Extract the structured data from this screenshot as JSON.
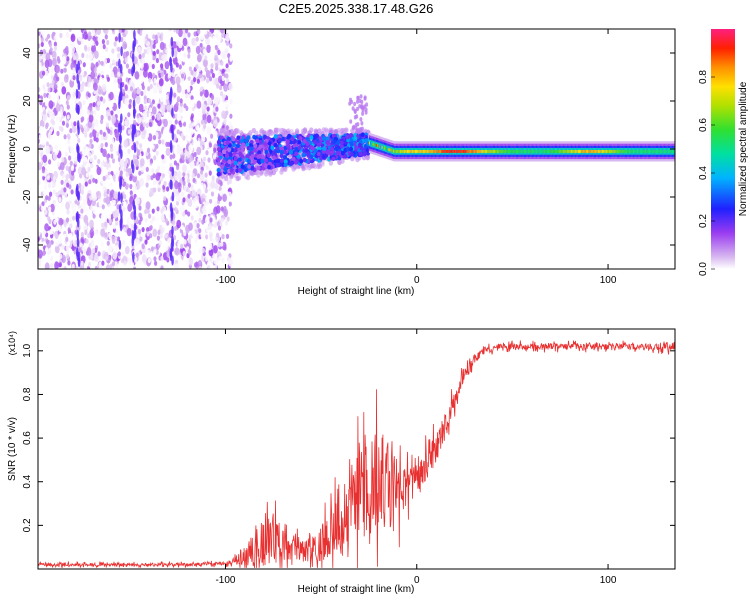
{
  "title": "C2E5.2025.338.17.48.G26",
  "chart_data": [
    {
      "type": "heatmap",
      "xlabel": "Height of straight line (km)",
      "ylabel": "Frequency (Hz)",
      "xlim": [
        -198,
        135
      ],
      "ylim": [
        -50,
        50
      ],
      "xticks": [
        -100,
        0,
        100
      ],
      "xtick_labels": [
        "-100",
        "0",
        "100"
      ],
      "yticks": [
        -40,
        -20,
        0,
        20,
        40
      ],
      "ytick_labels": [
        "-40",
        "-20",
        "0",
        "20",
        "40"
      ],
      "colorbar": {
        "label": "Normalized spectral amplitude",
        "range": [
          0,
          1
        ],
        "ticks": [
          0.0,
          0.2,
          0.4,
          0.6,
          0.8
        ],
        "tick_labels": [
          "0.0",
          "0.2",
          "0.4",
          "0.6",
          "0.8"
        ]
      },
      "regions": [
        {
          "name": "noise",
          "x": [
            -198,
            -97
          ],
          "freq": [
            -50,
            50
          ],
          "amplitude": [
            0.0,
            0.15
          ]
        },
        {
          "name": "turbulent",
          "x": [
            -104,
            -25
          ],
          "freq": [
            -14,
            8
          ],
          "amplitude": [
            0.1,
            0.35
          ]
        },
        {
          "name": "drift",
          "x": [
            -25,
            -12
          ],
          "freq": [
            -2,
            4
          ],
          "amplitude": [
            0.3,
            0.9
          ]
        },
        {
          "name": "stable_line",
          "x": [
            -12,
            135
          ],
          "freq": [
            -2,
            0
          ],
          "amplitude": [
            0.4,
            0.95
          ]
        }
      ]
    },
    {
      "type": "line",
      "xlabel": "Height of straight line (km)",
      "ylabel": "SNR (10 * v/v)",
      "y_multiplier_label": "(x10⁴)",
      "xlim": [
        -198,
        135
      ],
      "ylim": [
        0,
        1.1
      ],
      "xticks": [
        -100,
        0,
        100
      ],
      "xtick_labels": [
        "-100",
        "0",
        "100"
      ],
      "yticks": [
        0.2,
        0.4,
        0.6,
        0.8,
        1.0
      ],
      "ytick_labels": [
        "0.2",
        "0.4",
        "0.6",
        "0.8",
        "1.0"
      ],
      "color": "#e83030",
      "x": [
        -198,
        -160,
        -120,
        -100,
        -95,
        -90,
        -85,
        -80,
        -75,
        -70,
        -65,
        -60,
        -55,
        -50,
        -45,
        -40,
        -35,
        -30,
        -25,
        -20,
        -15,
        -10,
        -5,
        0,
        5,
        10,
        15,
        20,
        25,
        30,
        35,
        40,
        45,
        50,
        60,
        80,
        100,
        120,
        135
      ],
      "y": [
        0.02,
        0.02,
        0.02,
        0.025,
        0.04,
        0.06,
        0.09,
        0.12,
        0.14,
        0.11,
        0.09,
        0.08,
        0.09,
        0.11,
        0.15,
        0.2,
        0.28,
        0.36,
        0.4,
        0.42,
        0.38,
        0.35,
        0.37,
        0.42,
        0.48,
        0.55,
        0.65,
        0.78,
        0.9,
        0.96,
        1.0,
        1.01,
        1.02,
        1.02,
        1.02,
        1.02,
        1.02,
        1.02,
        1.02
      ],
      "noise_amplitude": [
        0.01,
        0.01,
        0.01,
        0.012,
        0.02,
        0.06,
        0.11,
        0.15,
        0.17,
        0.11,
        0.08,
        0.07,
        0.08,
        0.12,
        0.16,
        0.22,
        0.28,
        0.32,
        0.34,
        0.34,
        0.3,
        0.2,
        0.12,
        0.1,
        0.1,
        0.1,
        0.08,
        0.06,
        0.04,
        0.03,
        0.02,
        0.02,
        0.02,
        0.02,
        0.02,
        0.02,
        0.02,
        0.02,
        0.03
      ]
    }
  ]
}
